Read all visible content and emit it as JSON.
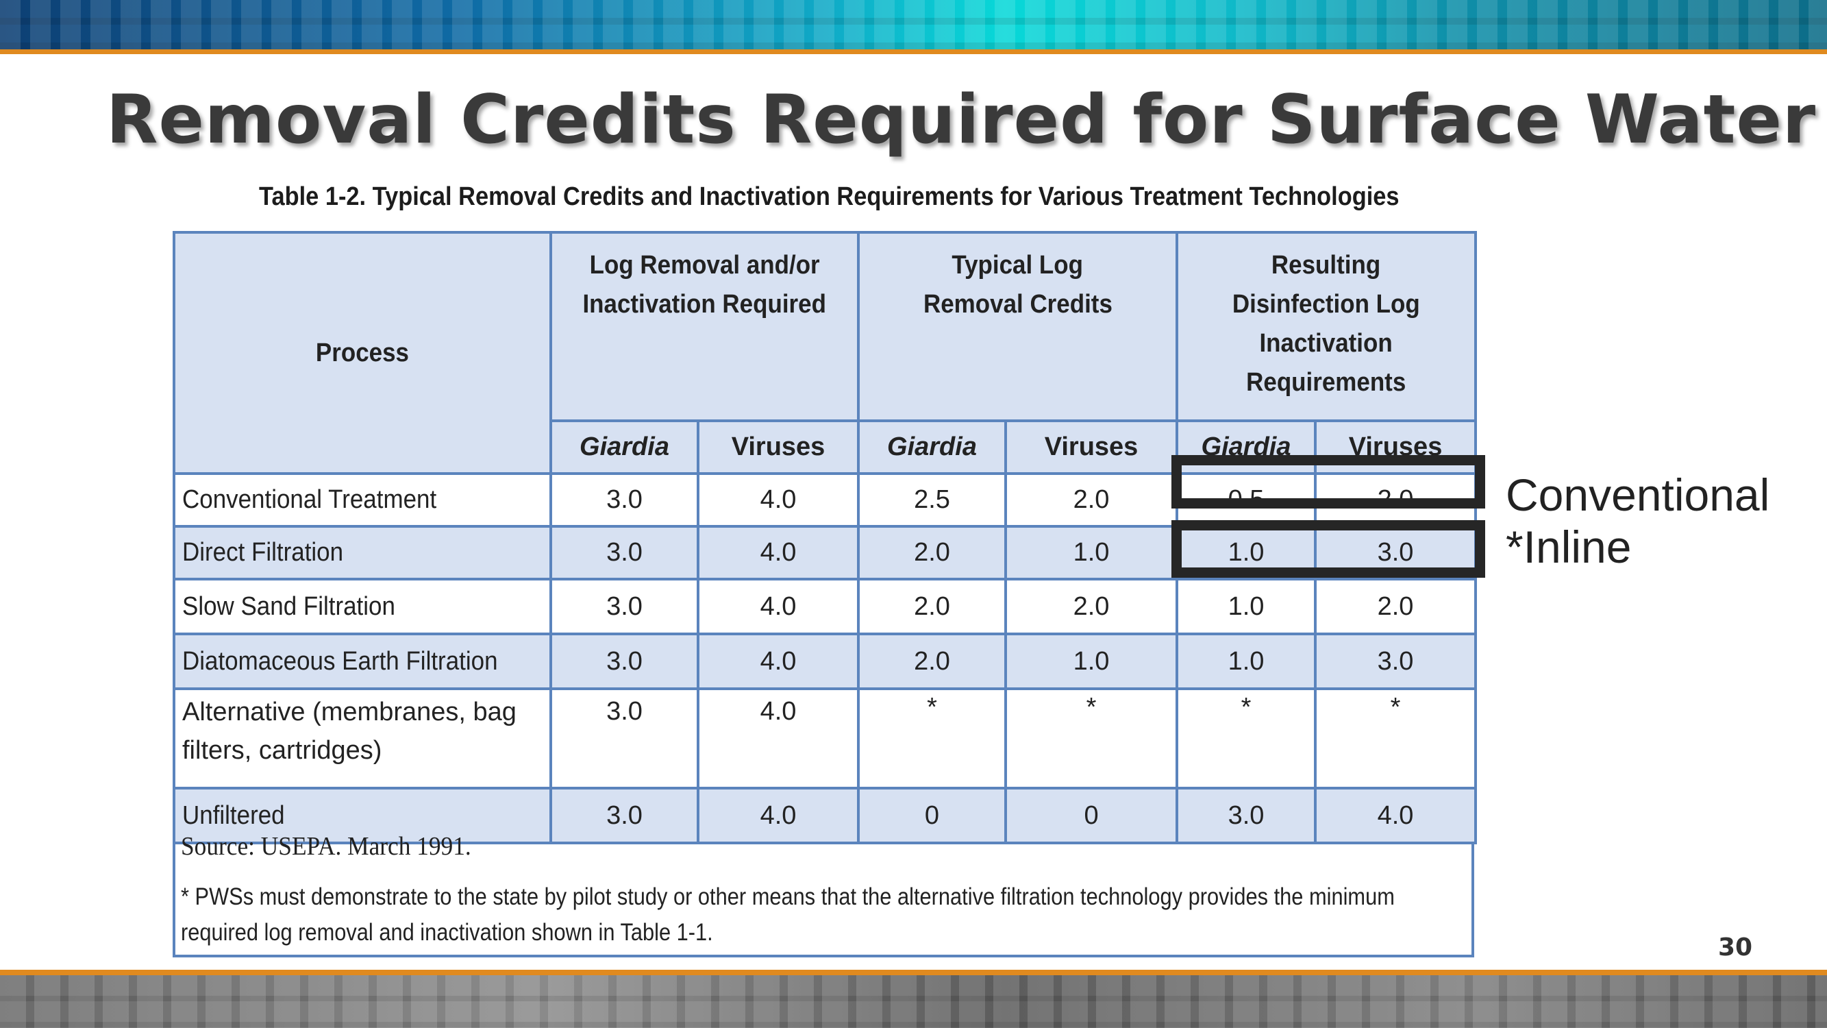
{
  "slide": {
    "title": "Removal Credits Required for Surface Water",
    "page_number": "30"
  },
  "table": {
    "caption": "Table 1-2. Typical Removal Credits and Inactivation Requirements for Various Treatment Technologies",
    "headers": {
      "process": "Process",
      "log_removal_line1": "Log Removal and/or",
      "log_removal_line2": "Inactivation Required",
      "typical_line1": "Typical Log",
      "typical_line2": "Removal Credits",
      "resulting_line1": "Resulting",
      "resulting_line2": "Disinfection Log",
      "resulting_line3": "Inactivation",
      "resulting_line4": "Requirements"
    },
    "subheaders": [
      "Giardia",
      "Viruses",
      "Giardia",
      "Viruses",
      "Giardia",
      "Viruses"
    ],
    "rows": [
      {
        "process": "Conventional Treatment",
        "values": [
          "3.0",
          "4.0",
          "2.5",
          "2.0",
          "0.5",
          "2.0"
        ]
      },
      {
        "process": "Direct Filtration",
        "values": [
          "3.0",
          "4.0",
          "2.0",
          "1.0",
          "1.0",
          "3.0"
        ]
      },
      {
        "process": "Slow Sand Filtration",
        "values": [
          "3.0",
          "4.0",
          "2.0",
          "2.0",
          "1.0",
          "2.0"
        ]
      },
      {
        "process": "Diatomaceous Earth Filtration",
        "values": [
          "3.0",
          "4.0",
          "2.0",
          "1.0",
          "1.0",
          "3.0"
        ]
      },
      {
        "process": "Alternative (membranes, bag filters, cartridges)",
        "values": [
          "3.0",
          "4.0",
          "*",
          "*",
          "*",
          "*"
        ]
      },
      {
        "process": "Unfiltered",
        "values": [
          "3.0",
          "4.0",
          "0",
          "0",
          "3.0",
          "4.0"
        ]
      }
    ],
    "source": "Source: USEPA. March 1991.",
    "footnote": "* PWSs must demonstrate to the state by pilot study or other means that the alternative filtration technology provides the minimum required log removal and inactivation shown in Table 1-1."
  },
  "annotations": {
    "label_1": "Conventional",
    "label_2": "*Inline"
  },
  "colors": {
    "header_fill": "#d7e1f2",
    "grid_line": "#5b84bd",
    "accent_orange": "#e08a1f",
    "highlight_box": "#262626"
  }
}
